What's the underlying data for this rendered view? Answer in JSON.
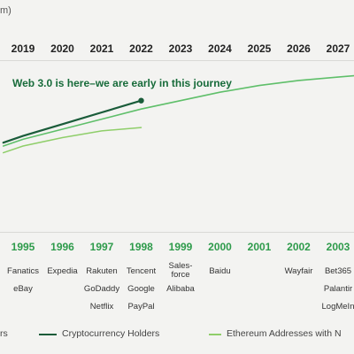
{
  "top_label": "m)",
  "annotation": "Web 3.0 is here–we are early in this journey",
  "colors": {
    "crypto_holders": "#1a5c3a",
    "ethereum_addresses": "#8fce6a",
    "internet_series": "#5fbf6a",
    "bottom_years": "#2e9b4b"
  },
  "chart_data": {
    "type": "line",
    "x_top_ticks": [
      "2019",
      "2020",
      "2021",
      "2022",
      "2023",
      "2024",
      "2025",
      "2026",
      "2027"
    ],
    "x_bottom_ticks": [
      "1995",
      "1996",
      "1997",
      "1998",
      "1999",
      "2000",
      "2001",
      "2002",
      "2003"
    ],
    "series": [
      {
        "name": "Cryptocurrency Holders",
        "x": [
          2018.5,
          2019,
          2020,
          2021,
          2022
        ],
        "y": [
          0.52,
          0.56,
          0.63,
          0.7,
          0.77
        ]
      },
      {
        "name": "Ethereum Addresses with N",
        "x": [
          2018.5,
          2019,
          2020,
          2021,
          2022
        ],
        "y": [
          0.46,
          0.5,
          0.55,
          0.59,
          0.61
        ]
      },
      {
        "name": "",
        "x": [
          2018.5,
          2019,
          2020,
          2021,
          2022,
          2023,
          2024,
          2025,
          2026,
          2027,
          2027.5
        ],
        "y": [
          0.5,
          0.54,
          0.6,
          0.66,
          0.72,
          0.77,
          0.82,
          0.86,
          0.89,
          0.91,
          0.92
        ]
      }
    ],
    "grid": false,
    "legend_placement": "bottom"
  },
  "companies": {
    "1995": [
      "Fanatics",
      "eBay"
    ],
    "1996": [
      "Expedia"
    ],
    "1997": [
      "Rakuten",
      "GoDaddy",
      "Netflix"
    ],
    "1998": [
      "Tencent",
      "Google",
      "PayPal"
    ],
    "1999": [
      "Sales-",
      "force",
      "Alibaba"
    ],
    "2000": [
      "Baidu"
    ],
    "2001": [],
    "2002": [
      "Wayfair"
    ],
    "2003": [
      "Bet365",
      "Palantir",
      "LogMeIn"
    ]
  },
  "legend": {
    "item1": "rs",
    "item2": "Cryptocurrency Holders",
    "item3": "Ethereum Addresses with N"
  }
}
